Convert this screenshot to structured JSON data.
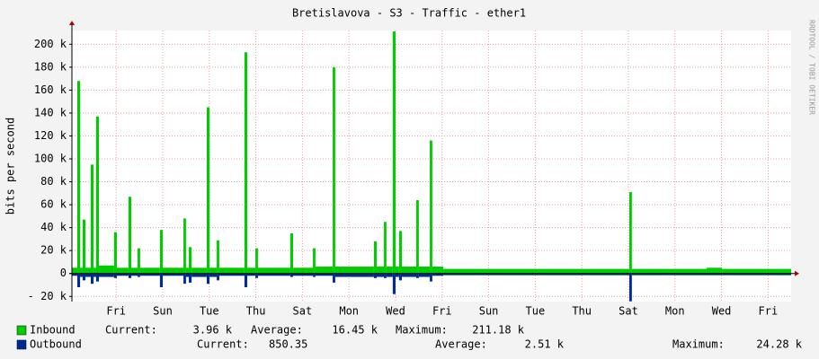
{
  "chart_data": {
    "type": "bar",
    "title": "Bretislavova - S3 - Traffic - ether1",
    "y_label": "bits per second",
    "watermark": "RRDTOOL / TOBI OETIKER",
    "xlim": [
      0,
      30.89
    ],
    "ylim": [
      -24500,
      212000
    ],
    "grid": true,
    "xticks": [
      {
        "value": 1.9,
        "label": "Fri"
      },
      {
        "value": 3.9,
        "label": "Sun"
      },
      {
        "value": 5.9,
        "label": "Tue"
      },
      {
        "value": 7.9,
        "label": "Thu"
      },
      {
        "value": 9.9,
        "label": "Sat"
      },
      {
        "value": 11.9,
        "label": "Mon"
      },
      {
        "value": 13.9,
        "label": "Wed"
      },
      {
        "value": 15.9,
        "label": "Fri"
      },
      {
        "value": 17.9,
        "label": "Sun"
      },
      {
        "value": 19.9,
        "label": "Tue"
      },
      {
        "value": 21.9,
        "label": "Thu"
      },
      {
        "value": 23.9,
        "label": "Sat"
      },
      {
        "value": 25.9,
        "label": "Mon"
      },
      {
        "value": 27.9,
        "label": "Wed"
      },
      {
        "value": 29.9,
        "label": "Fri"
      }
    ],
    "yticks": [
      {
        "value": -20000,
        "label": "- 20 k"
      },
      0,
      {
        "value": 20000,
        "label": "20 k"
      },
      {
        "value": 40000,
        "label": "40 k"
      },
      {
        "value": 60000,
        "label": "60 k"
      },
      {
        "value": 80000,
        "label": "80 k"
      },
      {
        "value": 100000,
        "label": "100 k"
      },
      {
        "value": 120000,
        "label": "120 k"
      },
      {
        "value": 140000,
        "label": "140 k"
      },
      {
        "value": 160000,
        "label": "160 k"
      },
      {
        "value": 180000,
        "label": "180 k"
      },
      {
        "value": 200000,
        "label": "200 k"
      }
    ],
    "x": [
      0,
      0.23,
      0.35,
      0.46,
      0.58,
      0.81,
      0.93,
      1.04,
      1.16,
      1.81,
      1.93,
      2.43,
      2.55,
      2.82,
      2.93,
      3.78,
      3.9,
      4.79,
      4.9,
      5.02,
      5.14,
      5.79,
      5.91,
      6.22,
      6.33,
      7.41,
      7.53,
      7.88,
      7.99,
      9.38,
      9.5,
      10.35,
      10.46,
      11.2,
      11.31,
      12.97,
      13.09,
      13.4,
      13.51,
      13.78,
      13.9,
      14.05,
      14.17,
      14.79,
      14.9,
      15.37,
      15.48,
      15.95,
      23.94,
      24.05,
      27.26,
      27.92
    ],
    "legend_labels": [
      "Current:",
      "Average:",
      "Maximum:"
    ],
    "series": [
      {
        "name": "Inbound",
        "color": "#00cc00",
        "stats": [
          "3.96 k",
          "16.45 k",
          "211.18 k"
        ],
        "values": [
          5000,
          168000,
          5000,
          47000,
          5000,
          95000,
          5000,
          137000,
          7000,
          36000,
          5000,
          67000,
          5000,
          22000,
          5000,
          38000,
          5000,
          48000,
          5000,
          23000,
          5000,
          145000,
          5000,
          29000,
          5000,
          193000,
          5000,
          22000,
          5000,
          35000,
          5000,
          22000,
          6000,
          180000,
          6000,
          28000,
          6000,
          45000,
          6000,
          211180,
          6000,
          37000,
          6000,
          64000,
          6000,
          116000,
          6000,
          4000,
          71000,
          4000,
          5000,
          4000
        ]
      },
      {
        "name": "Outbound",
        "color": "#002a97",
        "stats": [
          "850.35",
          "2.51 k",
          "24.28 k"
        ],
        "values": [
          -2000,
          -12000,
          -3000,
          -6000,
          -3000,
          -9000,
          -3000,
          -7000,
          -3000,
          -4000,
          -2000,
          -4000,
          -2000,
          -3000,
          -2000,
          -12000,
          -2000,
          -9000,
          -3000,
          -8000,
          -3000,
          -9000,
          -3000,
          -6000,
          -2000,
          -12000,
          -2000,
          -4000,
          -2000,
          -3000,
          -2000,
          -3000,
          -2000,
          -8000,
          -3000,
          -4000,
          -3000,
          -4000,
          -3000,
          -18000,
          -3000,
          -6000,
          -3000,
          -4000,
          -3000,
          -7000,
          -2000,
          -1500,
          -24280,
          -1500,
          -1500,
          -1500
        ]
      }
    ]
  }
}
